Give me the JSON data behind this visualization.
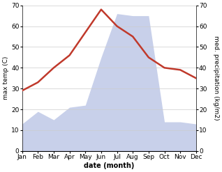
{
  "months": [
    "Jan",
    "Feb",
    "Mar",
    "Apr",
    "May",
    "Jun",
    "Jul",
    "Aug",
    "Sep",
    "Oct",
    "Nov",
    "Dec"
  ],
  "temperature": [
    29,
    33,
    40,
    46,
    57,
    68,
    60,
    55,
    45,
    40,
    39,
    35
  ],
  "precipitation": [
    13,
    19,
    15,
    21,
    22,
    45,
    66,
    65,
    65,
    14,
    14,
    13
  ],
  "temp_color": "#c0392b",
  "precip_fill_color": "#c8d0ea",
  "temp_ylim": [
    0,
    70
  ],
  "precip_ylim": [
    0,
    70
  ],
  "xlabel": "date (month)",
  "ylabel_left": "max temp (C)",
  "ylabel_right": "med. precipitation (kg/m2)",
  "background_color": "#ffffff",
  "grid_color": "#cccccc",
  "tick_fontsize": 6.5,
  "label_fontsize": 6.5
}
